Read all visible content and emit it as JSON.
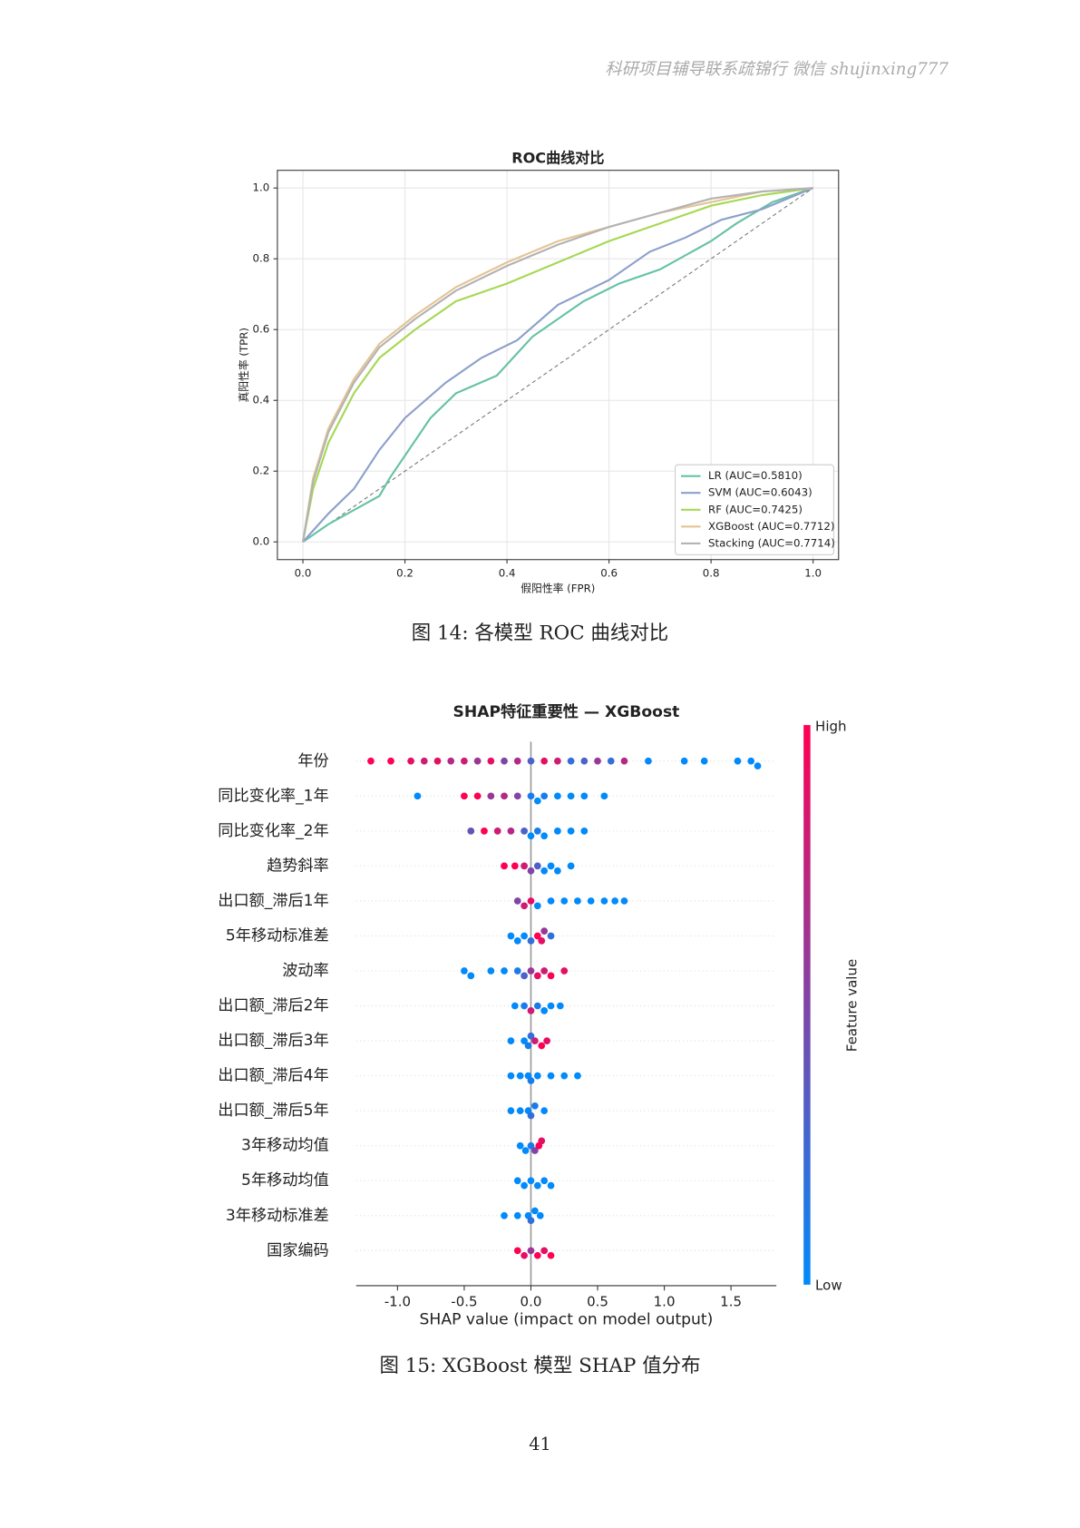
{
  "header": "科研项目辅导联系疏锦行 微信 shujinxing777",
  "chart_data": [
    {
      "type": "line",
      "title": "ROC曲线对比",
      "x_label": "假阳性率 (FPR)",
      "y_label": "真阳性率 (TPR)",
      "xlim": [
        -0.05,
        1.05
      ],
      "ylim": [
        -0.05,
        1.05
      ],
      "xticks": [
        {
          "value": 0,
          "label": "0.0"
        },
        0.2,
        0.4,
        0.6,
        0.8,
        {
          "value": 1,
          "label": "1.0"
        }
      ],
      "yticks": [
        {
          "value": 0,
          "label": "0.0"
        },
        0.2,
        0.4,
        0.6,
        0.8,
        {
          "value": 1,
          "label": "1.0"
        }
      ],
      "grid": true,
      "legend": "lower right",
      "series": [
        {
          "name": "LR (AUC=0.5810)",
          "color": "#66c2a5",
          "x": [
            0,
            0.05,
            0.15,
            0.17,
            0.25,
            0.3,
            0.38,
            0.45,
            0.55,
            0.62,
            0.7,
            0.8,
            0.85,
            0.92,
            1
          ],
          "values": [
            0,
            0.05,
            0.13,
            0.18,
            0.35,
            0.42,
            0.47,
            0.58,
            0.68,
            0.73,
            0.77,
            0.85,
            0.9,
            0.96,
            1
          ]
        },
        {
          "name": "SVM (AUC=0.6043)",
          "color": "#8da0cb",
          "x": [
            0,
            0.05,
            0.1,
            0.15,
            0.2,
            0.28,
            0.35,
            0.42,
            0.5,
            0.6,
            0.68,
            0.75,
            0.82,
            0.9,
            0.95,
            1
          ],
          "values": [
            0,
            0.08,
            0.15,
            0.26,
            0.35,
            0.45,
            0.52,
            0.57,
            0.67,
            0.74,
            0.82,
            0.86,
            0.91,
            0.94,
            0.97,
            1
          ]
        },
        {
          "name": "RF (AUC=0.7425)",
          "color": "#a6d854",
          "x": [
            0,
            0.02,
            0.05,
            0.1,
            0.15,
            0.22,
            0.3,
            0.4,
            0.5,
            0.6,
            0.7,
            0.8,
            0.9,
            1
          ],
          "values": [
            0,
            0.15,
            0.28,
            0.42,
            0.52,
            0.6,
            0.68,
            0.73,
            0.79,
            0.85,
            0.9,
            0.95,
            0.98,
            1
          ]
        },
        {
          "name": "XGBoost (AUC=0.7712)",
          "color": "#e5c494",
          "x": [
            0,
            0.02,
            0.05,
            0.1,
            0.15,
            0.22,
            0.3,
            0.4,
            0.5,
            0.6,
            0.7,
            0.8,
            0.9,
            1
          ],
          "values": [
            0,
            0.18,
            0.32,
            0.46,
            0.56,
            0.64,
            0.72,
            0.79,
            0.85,
            0.89,
            0.93,
            0.96,
            0.99,
            1
          ]
        },
        {
          "name": "Stacking (AUC=0.7714)",
          "color": "#b3b3b3",
          "x": [
            0,
            0.02,
            0.05,
            0.1,
            0.15,
            0.22,
            0.3,
            0.4,
            0.5,
            0.6,
            0.7,
            0.8,
            0.9,
            1
          ],
          "values": [
            0,
            0.17,
            0.31,
            0.45,
            0.55,
            0.63,
            0.71,
            0.78,
            0.84,
            0.89,
            0.93,
            0.97,
            0.99,
            1
          ]
        }
      ]
    },
    {
      "type": "beeswarm",
      "title": "SHAP特征重要性 — XGBoost",
      "x_label": "SHAP value (impact on model output)",
      "xlim": [
        -1.31,
        1.84
      ],
      "xticks": [
        {
          "value": -1,
          "label": "-1.0"
        },
        -0.5,
        {
          "value": 0,
          "label": "0.0"
        },
        0.5,
        {
          "value": 1,
          "label": "1.0"
        },
        1.5
      ],
      "colorbar": {
        "label": "Feature value",
        "high": "High",
        "low": "Low",
        "colors": [
          "#008afb",
          "#ff0052"
        ]
      },
      "features": [
        {
          "name": "年份",
          "values": [
            -1.2,
            -1.05,
            -0.9,
            -0.8,
            -0.7,
            -0.6,
            -0.5,
            -0.4,
            -0.3,
            -0.2,
            -0.1,
            0.0,
            0.1,
            0.2,
            0.3,
            0.4,
            0.5,
            0.6,
            0.7,
            0.88,
            1.15,
            1.3,
            1.55,
            1.65,
            1.7
          ],
          "feature_values": [
            1,
            1,
            0.9,
            0.8,
            0.9,
            0.7,
            0.8,
            0.6,
            0.9,
            0.5,
            0.7,
            0.3,
            0.9,
            0.8,
            0.2,
            0.3,
            0.6,
            0.2,
            0.7,
            0,
            0,
            0,
            0,
            0,
            0
          ]
        },
        {
          "name": "同比变化率_1年",
          "values": [
            -0.85,
            -0.5,
            -0.4,
            -0.3,
            -0.2,
            -0.1,
            0,
            0.05,
            0.1,
            0.2,
            0.3,
            0.4,
            0.55
          ],
          "feature_values": [
            0,
            1,
            1,
            0.6,
            0.7,
            0.5,
            0.1,
            0,
            0.1,
            0,
            0,
            0,
            0
          ]
        },
        {
          "name": "同比变化率_2年",
          "values": [
            -0.45,
            -0.35,
            -0.25,
            -0.15,
            -0.05,
            0,
            0.05,
            0.1,
            0.2,
            0.3,
            0.4
          ],
          "feature_values": [
            0.4,
            1,
            0.8,
            0.7,
            0.3,
            0,
            0.1,
            0,
            0,
            0,
            0
          ]
        },
        {
          "name": "趋势斜率",
          "values": [
            -0.2,
            -0.12,
            -0.05,
            0,
            0.05,
            0.1,
            0.15,
            0.2,
            0.3
          ],
          "feature_values": [
            1,
            1,
            0.8,
            0.5,
            0.3,
            0,
            0,
            0,
            0
          ]
        },
        {
          "name": "出口额_滞后1年",
          "values": [
            -0.1,
            -0.05,
            0,
            0.05,
            0.15,
            0.25,
            0.35,
            0.45,
            0.55,
            0.63,
            0.7
          ],
          "feature_values": [
            0.5,
            0.8,
            0.9,
            0,
            0,
            0,
            0,
            0,
            0,
            0,
            0
          ]
        },
        {
          "name": "5年移动标准差",
          "values": [
            -0.15,
            -0.1,
            -0.05,
            0,
            0.05,
            0.08,
            0.1,
            0.15
          ],
          "feature_values": [
            0,
            0,
            0,
            0.2,
            1,
            0.9,
            0.6,
            0.2
          ]
        },
        {
          "name": "波动率",
          "values": [
            -0.5,
            -0.45,
            -0.3,
            -0.2,
            -0.1,
            -0.05,
            0,
            0.05,
            0.1,
            0.15,
            0.25
          ],
          "feature_values": [
            0,
            0,
            0,
            0,
            0.1,
            0.3,
            0.6,
            0.9,
            0.8,
            1,
            0.9
          ]
        },
        {
          "name": "出口额_滞后2年",
          "values": [
            -0.12,
            -0.05,
            0,
            0.05,
            0.1,
            0.15,
            0.22
          ],
          "feature_values": [
            0,
            0.1,
            0.8,
            0.1,
            0,
            0,
            0
          ]
        },
        {
          "name": "出口额_滞后3年",
          "values": [
            -0.15,
            -0.05,
            -0.02,
            0,
            0.03,
            0.08,
            0.12
          ],
          "feature_values": [
            0,
            0,
            0.1,
            0.2,
            0.8,
            1,
            0.9
          ]
        },
        {
          "name": "出口额_滞后4年",
          "values": [
            -0.15,
            -0.08,
            -0.02,
            0,
            0.05,
            0.15,
            0.25,
            0.35
          ],
          "feature_values": [
            0,
            0,
            0,
            0.1,
            0,
            0,
            0,
            0
          ]
        },
        {
          "name": "出口额_滞后5年",
          "values": [
            -0.15,
            -0.08,
            -0.02,
            0,
            0.03,
            0.1
          ],
          "feature_values": [
            0,
            0,
            0,
            0.2,
            0.1,
            0
          ]
        },
        {
          "name": "3年移动均值",
          "values": [
            -0.08,
            -0.04,
            0,
            0.03,
            0.06,
            0.08
          ],
          "feature_values": [
            0,
            0,
            0.1,
            0.5,
            1,
            0.9
          ]
        },
        {
          "name": "5年移动均值",
          "values": [
            -0.1,
            -0.05,
            0,
            0.05,
            0.1,
            0.15
          ],
          "feature_values": [
            0,
            0,
            0,
            0,
            0,
            0
          ]
        },
        {
          "name": "3年移动标准差",
          "values": [
            -0.2,
            -0.1,
            -0.02,
            0,
            0.03,
            0.07
          ],
          "feature_values": [
            0,
            0,
            0,
            0.2,
            0,
            0
          ]
        },
        {
          "name": "国家编码",
          "values": [
            -0.1,
            -0.05,
            0,
            0.05,
            0.1,
            0.15
          ],
          "feature_values": [
            1,
            0.9,
            0.6,
            1,
            0.9,
            1
          ]
        }
      ]
    }
  ],
  "captions": [
    "图 14: 各模型 ROC 曲线对比",
    "图 15: XGBoost 模型 SHAP 值分布"
  ],
  "page_number": "41"
}
